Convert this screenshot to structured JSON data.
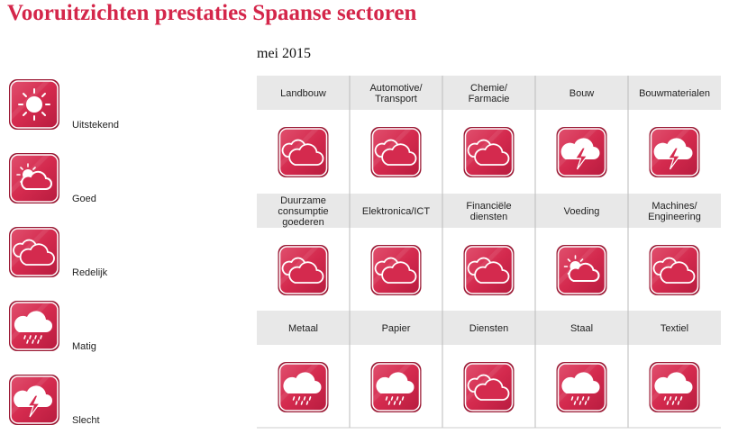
{
  "title": "Vooruitzichten prestaties Spaanse sectoren",
  "subtitle": "mei 2015",
  "legend": [
    {
      "label": "Uitstekend",
      "icon": "sun"
    },
    {
      "label": "Goed",
      "icon": "sun-cloud"
    },
    {
      "label": "Redelijk",
      "icon": "cloud"
    },
    {
      "label": "Matig",
      "icon": "rain"
    },
    {
      "label": "Slecht",
      "icon": "storm"
    }
  ],
  "rows": [
    [
      {
        "lines": [
          "Landbouw"
        ],
        "icon": "cloud"
      },
      {
        "lines": [
          "Automotive/",
          "Transport"
        ],
        "icon": "cloud"
      },
      {
        "lines": [
          "Chemie/",
          "Farmacie"
        ],
        "icon": "cloud"
      },
      {
        "lines": [
          "Bouw"
        ],
        "icon": "storm"
      },
      {
        "lines": [
          "Bouwmaterialen"
        ],
        "icon": "storm"
      }
    ],
    [
      {
        "lines": [
          "Duurzame",
          "consumptie",
          "goederen"
        ],
        "icon": "cloud"
      },
      {
        "lines": [
          "Elektronica/ICT"
        ],
        "icon": "cloud"
      },
      {
        "lines": [
          "Financiële",
          "diensten"
        ],
        "icon": "cloud"
      },
      {
        "lines": [
          "Voeding"
        ],
        "icon": "sun-cloud"
      },
      {
        "lines": [
          "Machines/",
          "Engineering"
        ],
        "icon": "cloud"
      }
    ],
    [
      {
        "lines": [
          "Metaal"
        ],
        "icon": "rain"
      },
      {
        "lines": [
          "Papier"
        ],
        "icon": "rain"
      },
      {
        "lines": [
          "Diensten"
        ],
        "icon": "cloud"
      },
      {
        "lines": [
          "Staal"
        ],
        "icon": "rain"
      },
      {
        "lines": [
          "Textiel"
        ],
        "icon": "rain"
      }
    ]
  ]
}
